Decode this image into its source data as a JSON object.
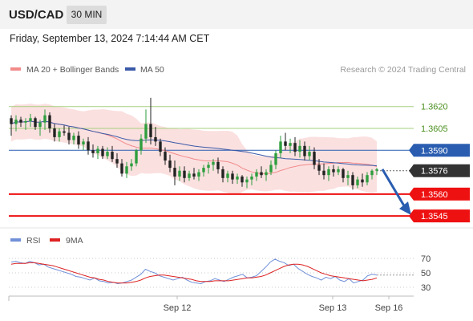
{
  "header": {
    "symbol": "USD/CAD",
    "timeframe": "30 MIN"
  },
  "datetime": "Friday, September 13, 2024 7:14:44 AM CET",
  "credit": "Research © 2024 Trading Central",
  "legend": {
    "ma20_label": "MA 20 + Bollinger Bands",
    "ma50_label": "MA 50",
    "rsi_label": "RSI",
    "ma9_label": "9MA"
  },
  "colors": {
    "ma20": "#f28b8b",
    "band": "#fbe0e0",
    "ma50": "#3a5aa8",
    "up": "#2e9e3e",
    "down": "#222222",
    "resistance_green": "#a6cf7d",
    "level_blue": "#2a5db0",
    "support_red": "#ee1111",
    "current_bg": "#333333",
    "arrow": "#2a5db0",
    "rsi": "#7090d8",
    "ma9": "#dd2222"
  },
  "chart_data": [
    {
      "type": "candlestick",
      "ylim": [
        1.3539,
        1.3638
      ],
      "x_labels": [
        "Sep 12",
        "Sep 13",
        "Sep 16"
      ],
      "levels": [
        {
          "value": 1.362,
          "label": "1.3620",
          "kind": "resistance"
        },
        {
          "value": 1.3605,
          "label": "1.3605",
          "kind": "resistance"
        },
        {
          "value": 1.359,
          "label": "1.3590",
          "kind": "pivot"
        },
        {
          "value": 1.3576,
          "label": "1.3576",
          "kind": "current"
        },
        {
          "value": 1.356,
          "label": "1.3560",
          "kind": "support"
        },
        {
          "value": 1.3545,
          "label": "1.3545",
          "kind": "support"
        }
      ],
      "candles": [
        [
          1.3612,
          1.3614,
          1.36,
          1.3608
        ],
        [
          1.3608,
          1.3614,
          1.3603,
          1.3611
        ],
        [
          1.3611,
          1.3613,
          1.3606,
          1.3609
        ],
        [
          1.3609,
          1.3612,
          1.3604,
          1.361
        ],
        [
          1.361,
          1.3615,
          1.3606,
          1.3612
        ],
        [
          1.3612,
          1.3613,
          1.3604,
          1.3606
        ],
        [
          1.3606,
          1.3611,
          1.36,
          1.3609
        ],
        [
          1.3609,
          1.3618,
          1.3604,
          1.3614
        ],
        [
          1.3614,
          1.3616,
          1.3602,
          1.3605
        ],
        [
          1.3605,
          1.3608,
          1.3596,
          1.3599
        ],
        [
          1.3599,
          1.3605,
          1.3596,
          1.3603
        ],
        [
          1.3603,
          1.3607,
          1.36,
          1.3602
        ],
        [
          1.3602,
          1.3606,
          1.3594,
          1.3597
        ],
        [
          1.3597,
          1.3602,
          1.3594,
          1.36
        ],
        [
          1.36,
          1.3603,
          1.3591,
          1.3594
        ],
        [
          1.3594,
          1.3598,
          1.359,
          1.3596
        ],
        [
          1.3596,
          1.3599,
          1.3587,
          1.359
        ],
        [
          1.359,
          1.3594,
          1.3585,
          1.3588
        ],
        [
          1.3588,
          1.3593,
          1.3584,
          1.3591
        ],
        [
          1.3591,
          1.3593,
          1.3584,
          1.3586
        ],
        [
          1.3586,
          1.3592,
          1.3584,
          1.3589
        ],
        [
          1.3589,
          1.3593,
          1.3582,
          1.3584
        ],
        [
          1.3584,
          1.3588,
          1.3578,
          1.3581
        ],
        [
          1.3581,
          1.3584,
          1.3572,
          1.3574
        ],
        [
          1.3574,
          1.3582,
          1.3571,
          1.3579
        ],
        [
          1.3579,
          1.3584,
          1.3576,
          1.3581
        ],
        [
          1.3581,
          1.3591,
          1.3579,
          1.359
        ],
        [
          1.359,
          1.3601,
          1.3587,
          1.3598
        ],
        [
          1.3598,
          1.3618,
          1.3595,
          1.3608
        ],
        [
          1.3608,
          1.3626,
          1.3594,
          1.3599
        ],
        [
          1.3599,
          1.3606,
          1.3593,
          1.3596
        ],
        [
          1.3596,
          1.3598,
          1.3586,
          1.3589
        ],
        [
          1.3589,
          1.3592,
          1.358,
          1.3583
        ],
        [
          1.3583,
          1.3587,
          1.3575,
          1.3578
        ],
        [
          1.3578,
          1.3583,
          1.3566,
          1.3572
        ],
        [
          1.3572,
          1.3579,
          1.3569,
          1.3576
        ],
        [
          1.3576,
          1.3579,
          1.3568,
          1.3571
        ],
        [
          1.3571,
          1.3576,
          1.3569,
          1.3574
        ],
        [
          1.3574,
          1.3578,
          1.357,
          1.3572
        ],
        [
          1.3572,
          1.3577,
          1.3569,
          1.3575
        ],
        [
          1.3575,
          1.358,
          1.3572,
          1.3578
        ],
        [
          1.3578,
          1.3582,
          1.3574,
          1.358
        ],
        [
          1.358,
          1.3584,
          1.3576,
          1.3582
        ],
        [
          1.3582,
          1.3585,
          1.3574,
          1.3577
        ],
        [
          1.3577,
          1.3579,
          1.3568,
          1.3571
        ],
        [
          1.3571,
          1.3576,
          1.3568,
          1.3574
        ],
        [
          1.3574,
          1.3576,
          1.3567,
          1.357
        ],
        [
          1.357,
          1.3574,
          1.3567,
          1.3572
        ],
        [
          1.3572,
          1.3573,
          1.3565,
          1.3568
        ],
        [
          1.3568,
          1.3572,
          1.3564,
          1.357
        ],
        [
          1.357,
          1.3574,
          1.3566,
          1.3572
        ],
        [
          1.3572,
          1.3577,
          1.3569,
          1.3575
        ],
        [
          1.3575,
          1.3579,
          1.3571,
          1.3573
        ],
        [
          1.3573,
          1.3577,
          1.3569,
          1.3575
        ],
        [
          1.3575,
          1.3583,
          1.3573,
          1.358
        ],
        [
          1.358,
          1.359,
          1.3577,
          1.3588
        ],
        [
          1.3588,
          1.36,
          1.3585,
          1.3596
        ],
        [
          1.3596,
          1.3602,
          1.359,
          1.3593
        ],
        [
          1.3593,
          1.3598,
          1.3588,
          1.3595
        ],
        [
          1.3595,
          1.3599,
          1.3586,
          1.3589
        ],
        [
          1.3589,
          1.3597,
          1.3585,
          1.3593
        ],
        [
          1.3593,
          1.3596,
          1.3583,
          1.3586
        ],
        [
          1.3586,
          1.3593,
          1.3583,
          1.3589
        ],
        [
          1.3589,
          1.3592,
          1.3577,
          1.358
        ],
        [
          1.358,
          1.3584,
          1.3573,
          1.3576
        ],
        [
          1.3576,
          1.3581,
          1.357,
          1.3573
        ],
        [
          1.3573,
          1.3579,
          1.3569,
          1.3577
        ],
        [
          1.3577,
          1.358,
          1.3572,
          1.3575
        ],
        [
          1.3575,
          1.3579,
          1.3573,
          1.3577
        ],
        [
          1.3577,
          1.3578,
          1.3568,
          1.3571
        ],
        [
          1.3571,
          1.3576,
          1.3566,
          1.3573
        ],
        [
          1.3573,
          1.3575,
          1.3563,
          1.3566
        ],
        [
          1.3566,
          1.3572,
          1.3564,
          1.357
        ],
        [
          1.357,
          1.3574,
          1.3565,
          1.3568
        ],
        [
          1.3568,
          1.3575,
          1.3566,
          1.3573
        ],
        [
          1.3573,
          1.3577,
          1.357,
          1.3576
        ],
        [
          1.3576,
          1.3578,
          1.3573,
          1.3577
        ]
      ]
    },
    {
      "type": "line",
      "ylim": [
        20,
        80
      ],
      "y_ticks": [
        70,
        50,
        30
      ],
      "series": [
        {
          "name": "RSI",
          "values": [
            65,
            66,
            64,
            63,
            66,
            64,
            61,
            62,
            58,
            56,
            54,
            52,
            50,
            48,
            45,
            44,
            42,
            40,
            43,
            39,
            38,
            36,
            37,
            35,
            36,
            38,
            40,
            44,
            48,
            55,
            52,
            50,
            46,
            44,
            42,
            40,
            42,
            44,
            40,
            37,
            36,
            35,
            38,
            39,
            42,
            40,
            38,
            41,
            44,
            46,
            48,
            43,
            44,
            46,
            52,
            58,
            65,
            69,
            66,
            64,
            60,
            62,
            56,
            52,
            48,
            45,
            43,
            40,
            44,
            42,
            45,
            40,
            38,
            42,
            36,
            38,
            40,
            46,
            48,
            47
          ]
        },
        {
          "name": "9MA",
          "values": [
            62,
            63,
            63,
            63,
            64,
            64,
            63,
            62,
            61,
            60,
            58,
            56,
            54,
            52,
            50,
            48,
            46,
            44,
            43,
            41,
            40,
            38,
            37,
            36,
            36,
            36,
            37,
            38,
            40,
            43,
            45,
            46,
            47,
            47,
            46,
            45,
            44,
            43,
            42,
            41,
            39,
            38,
            38,
            38,
            39,
            39,
            39,
            39,
            40,
            41,
            42,
            43,
            43,
            44,
            45,
            47,
            50,
            53,
            56,
            59,
            61,
            62,
            62,
            61,
            59,
            56,
            53,
            50,
            48,
            46,
            45,
            44,
            43,
            42,
            41,
            40,
            39,
            40,
            41,
            43
          ]
        }
      ]
    }
  ]
}
